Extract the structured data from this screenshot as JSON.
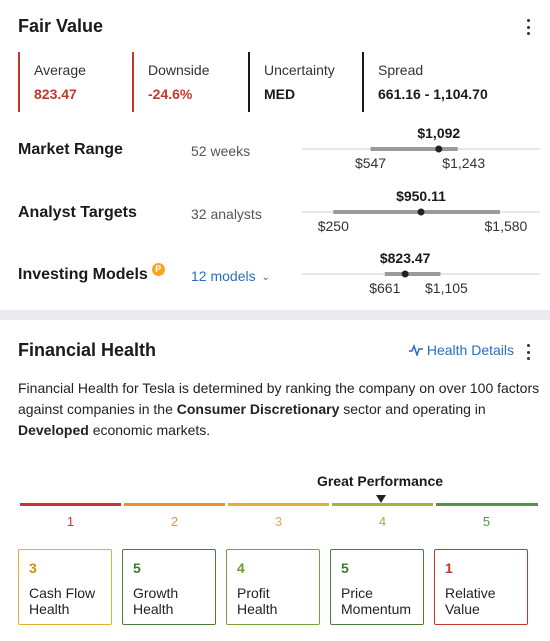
{
  "fair_value": {
    "title": "Fair Value",
    "metrics": [
      {
        "label": "Average",
        "value": "823.47",
        "color": "#c0392b",
        "bar_color": "#c0392b"
      },
      {
        "label": "Downside",
        "value": "-24.6%",
        "color": "#c0392b",
        "bar_color": "#c0392b"
      },
      {
        "label": "Uncertainty",
        "value": "MED",
        "color": "#1a1a1a",
        "bar_color": "#1a1a1a"
      },
      {
        "label": "Spread",
        "value": "661.16 - 1,104.70",
        "color": "#1a1a1a",
        "bar_color": "#1a1a1a"
      }
    ],
    "rows": [
      {
        "label": "Market Range",
        "sub": "52 weeks",
        "current": "$1,092",
        "low": "$547",
        "high": "$1,243",
        "domain": [
          0,
          1900
        ],
        "low_v": 547,
        "high_v": 1243,
        "current_v": 1092
      },
      {
        "label": "Analyst Targets",
        "sub": "32 analysts",
        "current": "$950.11",
        "low": "$250",
        "high": "$1,580",
        "domain": [
          0,
          1900
        ],
        "low_v": 250,
        "high_v": 1580,
        "current_v": 950.11
      },
      {
        "label": "Investing Models",
        "sub": "12 models",
        "current": "$823.47",
        "low": "$661",
        "high": "$1,105",
        "domain": [
          0,
          1900
        ],
        "low_v": 661,
        "high_v": 1105,
        "current_v": 823.47
      }
    ],
    "models_icon": "P"
  },
  "financial_health": {
    "title": "Financial Health",
    "details_link": "Health Details",
    "desc": {
      "p1": "Financial Health for Tesla is determined by ranking the company on over 100 factors against companies in the ",
      "b1": "Consumer Discretionary",
      "p2": " sector and operating in ",
      "b2": "Developed",
      "p3": " economic markets."
    },
    "performance_label": "Great Performance",
    "current_level": 4,
    "scale": [
      {
        "num": "1",
        "color": "#d32f2f"
      },
      {
        "num": "2",
        "color": "#e8912d"
      },
      {
        "num": "3",
        "color": "#e5b02e"
      },
      {
        "num": "4",
        "color": "#9cb73c"
      },
      {
        "num": "5",
        "color": "#4a9a3b"
      }
    ],
    "boxes": [
      {
        "score": "3",
        "label": "Cash Flow Health",
        "color": "#e5b02e",
        "score_color": "#c79200"
      },
      {
        "score": "5",
        "label": "Growth Health",
        "color": "#4a7a3b",
        "score_color": "#3d7a2a"
      },
      {
        "score": "4",
        "label": "Profit Health",
        "color": "#7aa03a",
        "score_color": "#6f9a2a"
      },
      {
        "score": "5",
        "label": "Price Momentum",
        "color": "#4a7a3b",
        "score_color": "#3d7a2a"
      },
      {
        "score": "1",
        "label": "Relative Value",
        "color": "#c0392b",
        "score_color": "#c0392b"
      }
    ]
  }
}
